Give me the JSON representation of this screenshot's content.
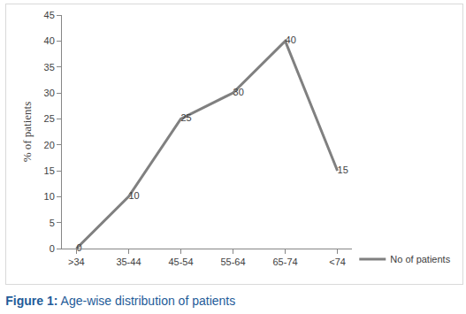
{
  "chart_data": {
    "type": "line",
    "title": "Figure 1: Age-wise distribution of patients",
    "y_label": "% of patients",
    "categories": [
      ">34",
      "35-44",
      "45-54",
      "55-64",
      "65-74",
      "<74"
    ],
    "series": [
      {
        "name": "No of patients",
        "color": "#808080",
        "values": [
          0,
          10,
          25,
          30,
          40,
          15
        ]
      }
    ],
    "ylim": [
      0,
      45
    ],
    "yticks": [
      0,
      5,
      10,
      15,
      20,
      25,
      30,
      35,
      40,
      45
    ],
    "grid": false,
    "legend": "right",
    "data_labels": true
  }
}
